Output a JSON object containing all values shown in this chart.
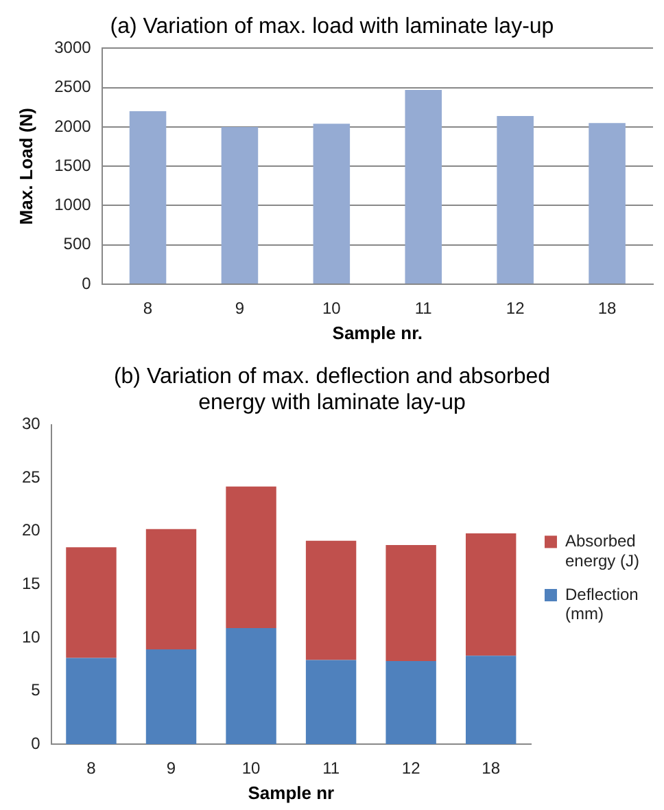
{
  "chart_data": [
    {
      "type": "bar",
      "title": "(a) Variation of max. load with laminate lay-up",
      "xlabel": "Sample nr.",
      "ylabel": "Max. Load (N)",
      "categories": [
        "8",
        "9",
        "10",
        "11",
        "12",
        "18"
      ],
      "values": [
        2200,
        2000,
        2040,
        2470,
        2140,
        2050
      ],
      "color": "#95abd3",
      "ylim": [
        0,
        3000
      ],
      "yticks": [
        0,
        500,
        1000,
        1500,
        2000,
        2500,
        3000
      ],
      "grid": "y",
      "legend": false
    },
    {
      "type": "bar",
      "title": "(b) Variation of max. deflection and absorbed energy with laminate lay-up",
      "xlabel": "Sample nr",
      "categories": [
        "8",
        "9",
        "10",
        "11",
        "12",
        "18"
      ],
      "stacked": true,
      "series": [
        {
          "name": "Deflection (mm)",
          "color": "#4f81bd",
          "values": [
            8.1,
            8.9,
            10.9,
            7.9,
            7.8,
            8.3
          ]
        },
        {
          "name": "Absorbed energy (J)",
          "color": "#c0504d",
          "values": [
            10.4,
            11.3,
            13.3,
            11.2,
            10.9,
            11.5
          ]
        }
      ],
      "ylim": [
        0,
        30
      ],
      "yticks": [
        0,
        5,
        10,
        15,
        20,
        25,
        30
      ],
      "grid": false,
      "legend": "right"
    }
  ]
}
